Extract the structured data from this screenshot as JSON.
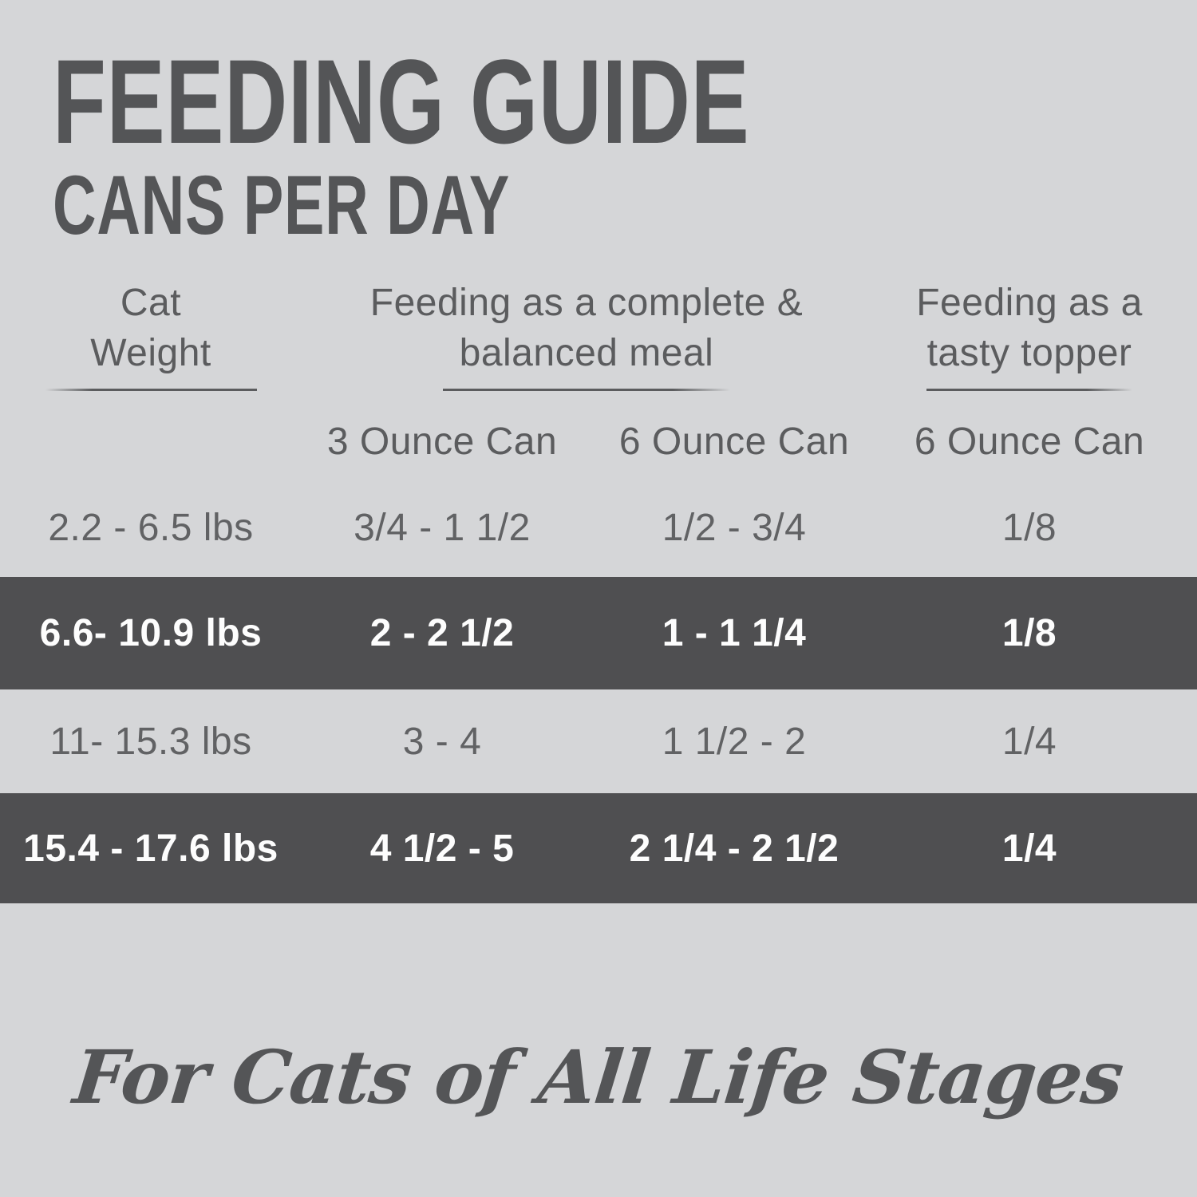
{
  "header": {
    "title": "FEEDING GUIDE",
    "subtitle": "CANS PER DAY"
  },
  "table": {
    "header": {
      "cat_weight": {
        "line1": "Cat",
        "line2": "Weight"
      },
      "complete_meal": {
        "line1": "Feeding as a complete &",
        "line2": "balanced meal"
      },
      "tasty_topper": {
        "line1": "Feeding as a",
        "line2": "tasty topper"
      }
    },
    "subheader": {
      "col2": "3 Ounce Can",
      "col3": "6 Ounce Can",
      "col4": "6 Ounce Can"
    },
    "rows": [
      {
        "weight": "2.2 - 6.5 lbs",
        "three_oz_can": "3/4 - 1 1/2",
        "six_oz_can": "1/2 - 3/4",
        "topper_six_oz_can": "1/8",
        "highlighted": false
      },
      {
        "weight": "6.6- 10.9 lbs",
        "three_oz_can": "2 - 2 1/2",
        "six_oz_can": "1 - 1 1/4",
        "topper_six_oz_can": "1/8",
        "highlighted": true
      },
      {
        "weight": "11- 15.3 lbs",
        "three_oz_can": "3 - 4",
        "six_oz_can": "1 1/2 - 2",
        "topper_six_oz_can": "1/4",
        "highlighted": false
      },
      {
        "weight": "15.4 - 17.6 lbs",
        "three_oz_can": "4 1/2 - 5",
        "six_oz_can": "2 1/4 - 2 1/2",
        "topper_six_oz_can": "1/4",
        "highlighted": true
      }
    ]
  },
  "footer": {
    "text": "For Cats of All Life Stages"
  },
  "colors": {
    "background": "#d5d6d8",
    "ink": "#5b5c5e",
    "title_ink": "#545557",
    "highlight_band": "#4f4f51",
    "highlight_text": "#fdfdfd"
  }
}
